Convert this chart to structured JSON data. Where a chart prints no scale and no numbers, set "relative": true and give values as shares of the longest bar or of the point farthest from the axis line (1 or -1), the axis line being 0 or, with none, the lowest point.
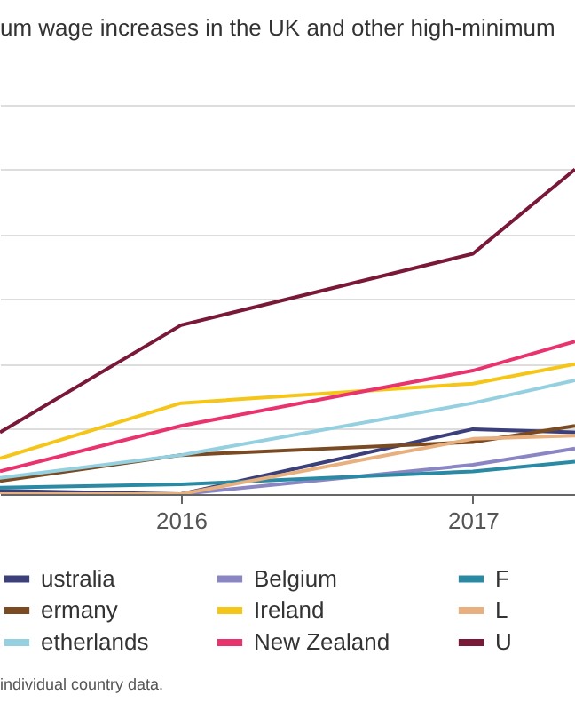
{
  "chart_data": {
    "type": "line",
    "title": "um wage increases in the UK and other high-minimum",
    "relative": true,
    "x": [
      2015.38,
      2016,
      2017,
      2017.35
    ],
    "xlim": [
      2015.38,
      2017.35
    ],
    "xticks": [
      2016,
      2017
    ],
    "grid": "y",
    "legend": "bottom",
    "annotations": [
      "individual country data."
    ],
    "series": [
      {
        "name": "ustralia",
        "color": "#3b3f7a",
        "values": [
          0.01,
          0,
          0.2,
          0.19
        ]
      },
      {
        "name": "Belgium",
        "color": "#8a86c4",
        "values": [
          0,
          0,
          0.09,
          0.14
        ]
      },
      {
        "name": "F",
        "color": "#2a8aa3",
        "values": [
          0.02,
          0.03,
          0.07,
          0.1
        ]
      },
      {
        "name": "ermany",
        "color": "#7a4a22",
        "values": [
          0.04,
          0.12,
          0.16,
          0.21
        ]
      },
      {
        "name": "Ireland",
        "color": "#f5c518",
        "values": [
          0.11,
          0.28,
          0.34,
          0.4
        ]
      },
      {
        "name": "L",
        "color": "#e8b07e",
        "values": [
          0,
          0,
          0.17,
          0.18
        ]
      },
      {
        "name": "etherlands",
        "color": "#94d0e0",
        "values": [
          0.05,
          0.12,
          0.28,
          0.35
        ]
      },
      {
        "name": "New Zealand",
        "color": "#e8336e",
        "values": [
          0.07,
          0.21,
          0.38,
          0.47
        ]
      },
      {
        "name": "U",
        "color": "#7a1838",
        "values": [
          0.19,
          0.52,
          0.74,
          1
        ]
      }
    ]
  }
}
